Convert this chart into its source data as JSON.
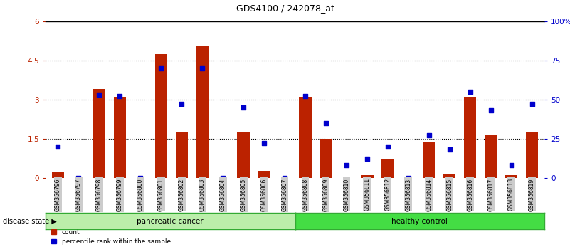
{
  "title": "GDS4100 / 242078_at",
  "samples": [
    "GSM356796",
    "GSM356797",
    "GSM356798",
    "GSM356799",
    "GSM356800",
    "GSM356801",
    "GSM356802",
    "GSM356803",
    "GSM356804",
    "GSM356805",
    "GSM356806",
    "GSM356807",
    "GSM356808",
    "GSM356809",
    "GSM356810",
    "GSM356811",
    "GSM356812",
    "GSM356813",
    "GSM356814",
    "GSM356815",
    "GSM356816",
    "GSM356817",
    "GSM356818",
    "GSM356819"
  ],
  "counts": [
    0.2,
    0.0,
    3.4,
    3.1,
    0.0,
    4.75,
    1.75,
    5.05,
    0.0,
    1.75,
    0.25,
    0.0,
    3.1,
    1.5,
    0.0,
    0.1,
    0.7,
    0.0,
    1.35,
    0.15,
    3.1,
    1.65,
    0.1,
    1.75
  ],
  "percentiles": [
    20,
    0,
    53,
    52,
    0,
    70,
    47,
    70,
    0,
    45,
    22,
    0,
    52,
    35,
    8,
    12,
    20,
    0,
    27,
    18,
    55,
    43,
    8,
    47
  ],
  "n_pancreatic": 12,
  "n_healthy": 12,
  "bar_color": "#bb2200",
  "dot_color": "#0000cc",
  "background_color": "#ffffff",
  "label_bg_color": "#cccccc",
  "pancreatic_color": "#bbeeaa",
  "healthy_color": "#44dd44",
  "ylim_left": [
    0,
    6
  ],
  "ylim_right": [
    0,
    100
  ],
  "yticks_left": [
    0,
    1.5,
    3.0,
    4.5,
    6.0
  ],
  "ytick_labels_left": [
    "0",
    "1.5",
    "3",
    "4.5",
    "6"
  ],
  "yticks_right": [
    0,
    25,
    50,
    75,
    100
  ],
  "ytick_labels_right": [
    "0",
    "25",
    "50",
    "75",
    "100%"
  ]
}
